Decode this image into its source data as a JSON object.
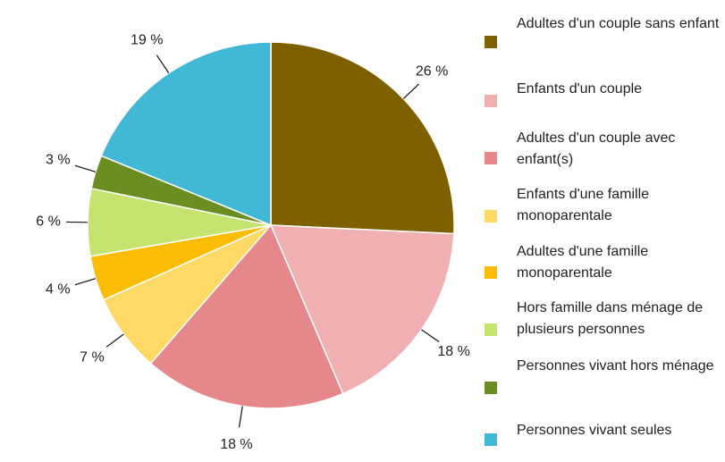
{
  "chart_data": {
    "type": "pie",
    "categories": [
      "Adultes d'un couple sans enfant",
      "Enfants d'un couple",
      "Adultes d'un couple avec enfant(s)",
      "Enfants d'une famille monoparentale",
      "Adultes d'une famille monoparentale",
      "Hors famille dans ménage de plusieurs personnes",
      "Personnes vivant hors ménage",
      "Personnes vivant seules"
    ],
    "values": [
      26,
      18,
      18,
      7,
      4,
      6,
      3,
      19
    ],
    "value_labels": [
      "26 %",
      "18 %",
      "18 %",
      "7 %",
      "4 %",
      "6 %",
      "3 %",
      "19 %"
    ],
    "colors": [
      "#7f6000",
      "#f0b0b2",
      "#e6878c",
      "#ffd966",
      "#fbbc04",
      "#c5e46f",
      "#6b8e23",
      "#41b8d5"
    ],
    "legend": "right"
  }
}
